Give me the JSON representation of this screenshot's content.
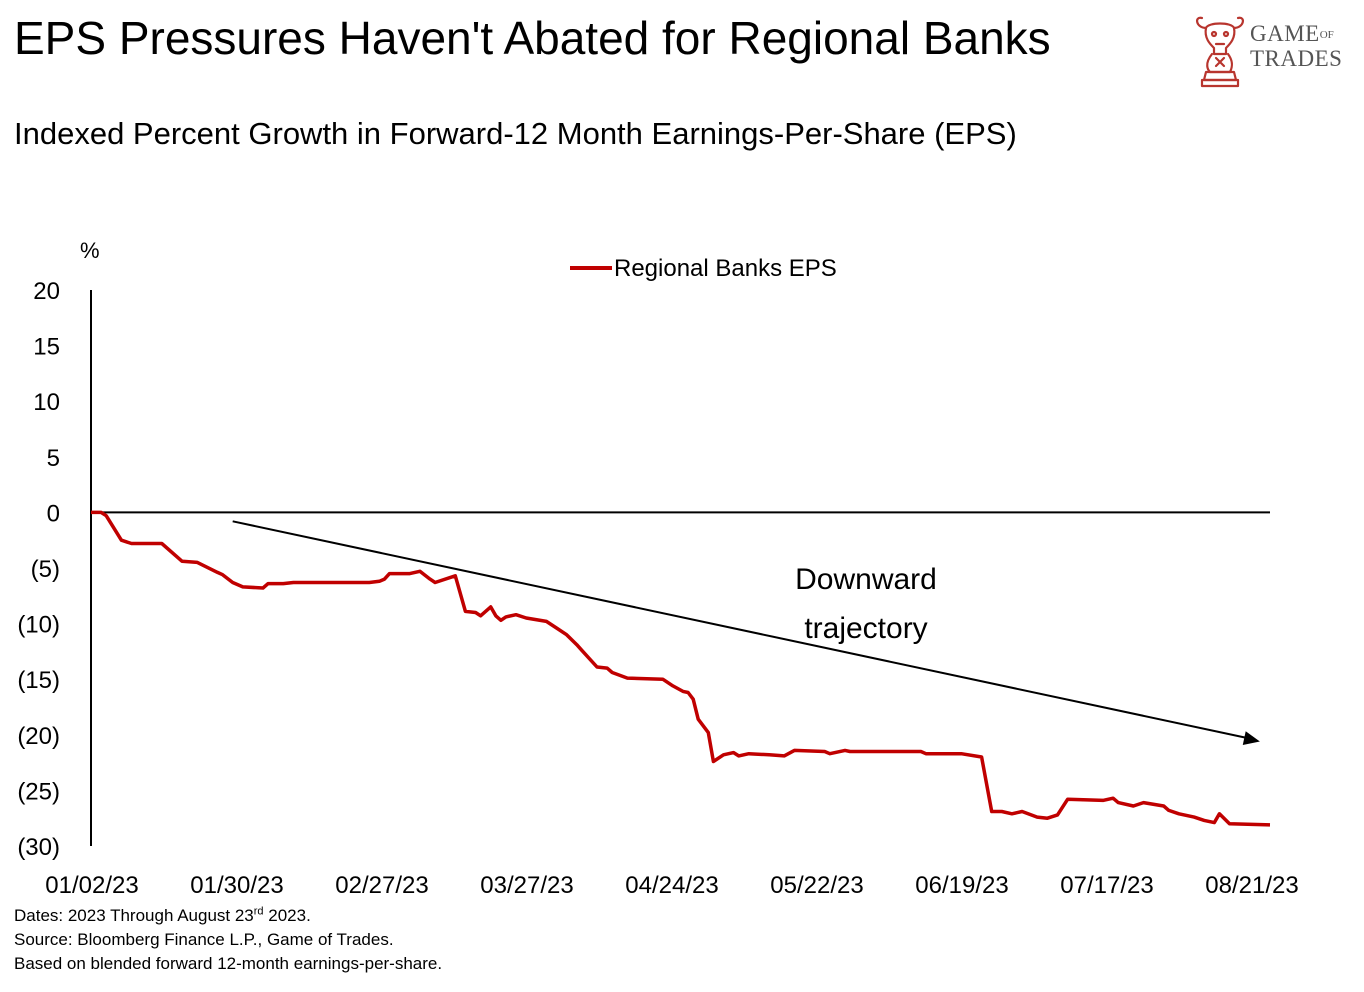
{
  "title": "EPS Pressures Haven't Abated for Regional Banks",
  "subtitle": "Indexed Percent Growth in Forward-12 Month Earnings-Per-Share (EPS)",
  "logo": {
    "text_line1": "GAME",
    "text_of": "OF",
    "text_line2": "TRADES",
    "color": "#b8352e",
    "icon": "bull-knight-chess-icon"
  },
  "footnotes": {
    "dates_pre": "Dates: 2023 Through August 23",
    "dates_sup": "rd",
    "dates_post": " 2023.",
    "source": "Source: Bloomberg Finance L.P., Game of Trades.",
    "basis": "Based on blended forward 12-month earnings-per-share."
  },
  "chart_data": {
    "type": "line",
    "title": "",
    "xlabel": "",
    "ylabel": "%",
    "y_ticks": [
      20,
      15,
      10,
      5,
      0,
      -5,
      -10,
      -15,
      -20,
      -25,
      -30
    ],
    "y_tick_labels": [
      "20",
      "15",
      "10",
      "5",
      "0",
      "(5)",
      "(10)",
      "(15)",
      "(20)",
      "(25)",
      "(30)"
    ],
    "ylim": [
      -30,
      20
    ],
    "x_tick_labels": [
      "01/02/23",
      "01/30/23",
      "02/27/23",
      "03/27/23",
      "04/24/23",
      "05/22/23",
      "06/19/23",
      "07/17/23",
      "08/21/23"
    ],
    "xlim": [
      "2023-01-02",
      "2023-08-23"
    ],
    "grid": false,
    "legend_position": "top-center",
    "series": [
      {
        "name": "Regional Banks EPS",
        "color": "#c00000",
        "points": [
          [
            "2023-01-02",
            0
          ],
          [
            "2023-01-04",
            0
          ],
          [
            "2023-01-05",
            -0.3
          ],
          [
            "2023-01-08",
            -2.5
          ],
          [
            "2023-01-10",
            -2.8
          ],
          [
            "2023-01-16",
            -2.8
          ],
          [
            "2023-01-20",
            -4.4
          ],
          [
            "2023-01-23",
            -4.5
          ],
          [
            "2023-01-27",
            -5.4
          ],
          [
            "2023-01-28",
            -5.6
          ],
          [
            "2023-01-30",
            -6.3
          ],
          [
            "2023-02-01",
            -6.7
          ],
          [
            "2023-02-05",
            -6.8
          ],
          [
            "2023-02-06",
            -6.4
          ],
          [
            "2023-02-09",
            -6.4
          ],
          [
            "2023-02-11",
            -6.3
          ],
          [
            "2023-02-16",
            -6.3
          ],
          [
            "2023-02-26",
            -6.3
          ],
          [
            "2023-02-28",
            -6.2
          ],
          [
            "2023-03-01",
            -6.0
          ],
          [
            "2023-03-02",
            -5.5
          ],
          [
            "2023-03-06",
            -5.5
          ],
          [
            "2023-03-08",
            -5.3
          ],
          [
            "2023-03-10",
            -6.0
          ],
          [
            "2023-03-11",
            -6.3
          ],
          [
            "2023-03-15",
            -5.7
          ],
          [
            "2023-03-17",
            -8.9
          ],
          [
            "2023-03-19",
            -9.0
          ],
          [
            "2023-03-20",
            -9.3
          ],
          [
            "2023-03-22",
            -8.5
          ],
          [
            "2023-03-23",
            -9.3
          ],
          [
            "2023-03-24",
            -9.7
          ],
          [
            "2023-03-25",
            -9.4
          ],
          [
            "2023-03-27",
            -9.2
          ],
          [
            "2023-03-29",
            -9.5
          ],
          [
            "2023-04-02",
            -9.8
          ],
          [
            "2023-04-04",
            -10.4
          ],
          [
            "2023-04-06",
            -11.0
          ],
          [
            "2023-04-08",
            -11.9
          ],
          [
            "2023-04-09",
            -12.4
          ],
          [
            "2023-04-12",
            -13.9
          ],
          [
            "2023-04-14",
            -14.0
          ],
          [
            "2023-04-15",
            -14.4
          ],
          [
            "2023-04-18",
            -14.9
          ],
          [
            "2023-04-25",
            -15.0
          ],
          [
            "2023-04-27",
            -15.6
          ],
          [
            "2023-04-29",
            -16.1
          ],
          [
            "2023-04-30",
            -16.2
          ],
          [
            "2023-05-01",
            -16.8
          ],
          [
            "2023-05-02",
            -18.6
          ],
          [
            "2023-05-04",
            -19.8
          ],
          [
            "2023-05-05",
            -22.4
          ],
          [
            "2023-05-07",
            -21.8
          ],
          [
            "2023-05-09",
            -21.6
          ],
          [
            "2023-05-10",
            -21.9
          ],
          [
            "2023-05-12",
            -21.7
          ],
          [
            "2023-05-16",
            -21.8
          ],
          [
            "2023-05-19",
            -21.9
          ],
          [
            "2023-05-21",
            -21.4
          ],
          [
            "2023-05-27",
            -21.5
          ],
          [
            "2023-05-28",
            -21.7
          ],
          [
            "2023-05-31",
            -21.4
          ],
          [
            "2023-06-01",
            -21.5
          ],
          [
            "2023-06-15",
            -21.5
          ],
          [
            "2023-06-16",
            -21.7
          ],
          [
            "2023-06-23",
            -21.7
          ],
          [
            "2023-06-27",
            -22.0
          ],
          [
            "2023-06-29",
            -26.9
          ],
          [
            "2023-07-01",
            -26.9
          ],
          [
            "2023-07-03",
            -27.1
          ],
          [
            "2023-07-05",
            -26.9
          ],
          [
            "2023-07-08",
            -27.4
          ],
          [
            "2023-07-10",
            -27.5
          ],
          [
            "2023-07-12",
            -27.2
          ],
          [
            "2023-07-14",
            -25.8
          ],
          [
            "2023-07-21",
            -25.9
          ],
          [
            "2023-07-23",
            -25.7
          ],
          [
            "2023-07-24",
            -26.1
          ],
          [
            "2023-07-27",
            -26.4
          ],
          [
            "2023-07-29",
            -26.1
          ],
          [
            "2023-08-02",
            -26.4
          ],
          [
            "2023-08-03",
            -26.8
          ],
          [
            "2023-08-05",
            -27.1
          ],
          [
            "2023-08-08",
            -27.4
          ],
          [
            "2023-08-10",
            -27.7
          ],
          [
            "2023-08-12",
            -27.9
          ],
          [
            "2023-08-13",
            -27.1
          ],
          [
            "2023-08-15",
            -28.0
          ],
          [
            "2023-08-23",
            -28.1
          ]
        ]
      }
    ],
    "annotations": [
      {
        "text_line1": "Downward",
        "text_line2": "trajectory",
        "arrow_from": [
          "2023-01-30",
          -0.8
        ],
        "arrow_to": [
          "2023-08-21",
          -20.6
        ]
      }
    ]
  }
}
